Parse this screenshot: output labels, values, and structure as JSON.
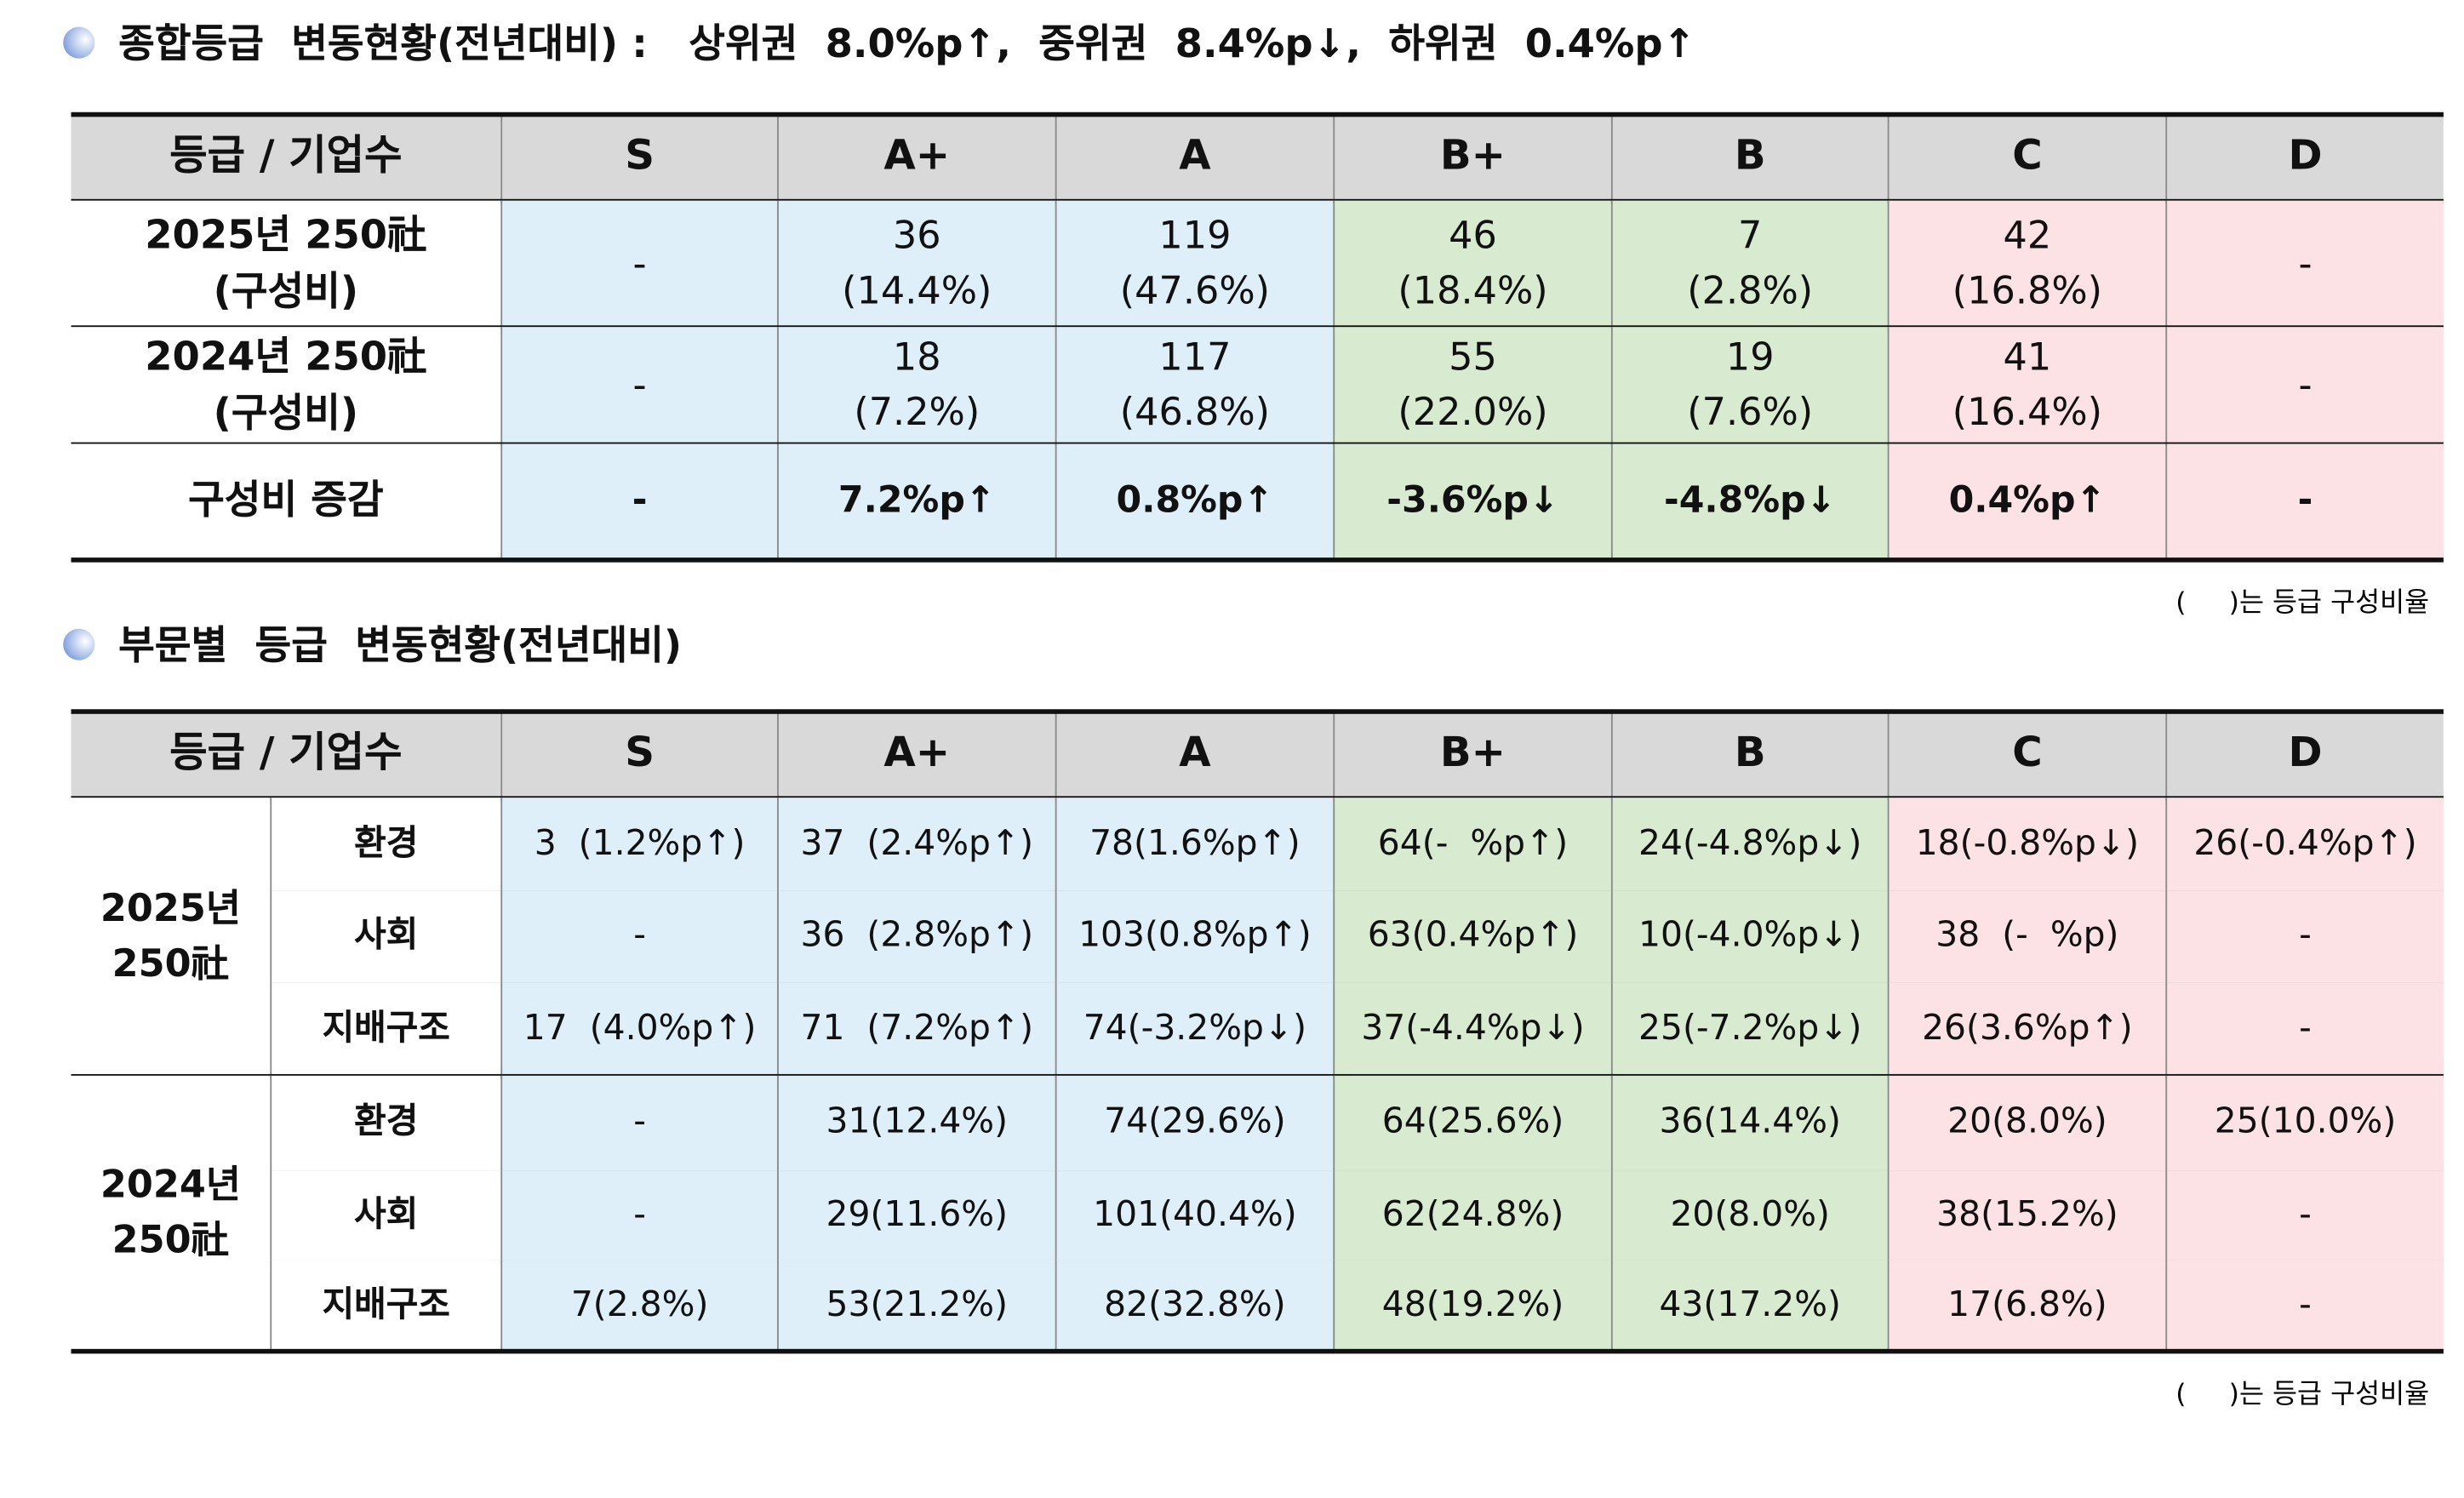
{
  "section1": {
    "title": "종합등급  변동현황(전년대비) :   상위권  8.0%p↑,  중위권  8.4%p↓,  하위권  0.4%p↑",
    "table": {
      "header": [
        "등급 / 기업수",
        "S",
        "A+",
        "A",
        "B+",
        "B",
        "C",
        "D"
      ],
      "rows": [
        {
          "label": [
            "2025년 250社",
            "(구성비)"
          ],
          "cells": [
            [
              "-"
            ],
            [
              "36",
              "(14.4%)"
            ],
            [
              "119",
              "(47.6%)"
            ],
            [
              "46",
              "(18.4%)"
            ],
            [
              "7",
              "(2.8%)"
            ],
            [
              "42",
              "(16.8%)"
            ],
            [
              "-"
            ]
          ]
        },
        {
          "label": [
            "2024년 250社",
            "(구성비)"
          ],
          "cells": [
            [
              "-"
            ],
            [
              "18",
              "(7.2%)"
            ],
            [
              "117",
              "(46.8%)"
            ],
            [
              "55",
              "(22.0%)"
            ],
            [
              "19",
              "(7.6%)"
            ],
            [
              "41",
              "(16.4%)"
            ],
            [
              "-"
            ]
          ]
        },
        {
          "label": [
            "구성비 증감"
          ],
          "cells": [
            [
              "-"
            ],
            [
              "7.2%p↑"
            ],
            [
              "0.8%p↑"
            ],
            [
              "-3.6%p↓"
            ],
            [
              "-4.8%p↓"
            ],
            [
              "0.4%p↑"
            ],
            [
              "-"
            ]
          ]
        }
      ]
    },
    "note": "(     )는 등급 구성비율"
  },
  "section2": {
    "title": "부문별  등급  변동현황(전년대비)",
    "table": {
      "header": [
        "등급 / 기업수",
        "S",
        "A+",
        "A",
        "B+",
        "B",
        "C",
        "D"
      ],
      "groups": [
        {
          "label": [
            "2025년",
            "250社"
          ],
          "rows": [
            {
              "label": "환경",
              "cells": [
                "3  (1.2%p↑)",
                "37  (2.4%p↑)",
                "78(1.6%p↑)",
                "64(-  %p↑)",
                "24(-4.8%p↓)",
                "18(-0.8%p↓)",
                "26(-0.4%p↑)"
              ]
            },
            {
              "label": "사회",
              "cells": [
                "-",
                "36  (2.8%p↑)",
                "103(0.8%p↑)",
                "63(0.4%p↑)",
                "10(-4.0%p↓)",
                "38  (-  %p)",
                "-"
              ]
            },
            {
              "label": "지배구조",
              "cells": [
                "17  (4.0%p↑)",
                "71  (7.2%p↑)",
                "74(-3.2%p↓)",
                "37(-4.4%p↓)",
                "25(-7.2%p↓)",
                "26(3.6%p↑)",
                "-"
              ]
            }
          ]
        },
        {
          "label": [
            "2024년",
            "250社"
          ],
          "rows": [
            {
              "label": "환경",
              "cells": [
                "-",
                "31(12.4%)",
                "74(29.6%)",
                "64(25.6%)",
                "36(14.4%)",
                "20(8.0%)",
                "25(10.0%)"
              ]
            },
            {
              "label": "사회",
              "cells": [
                "-",
                "29(11.6%)",
                "101(40.4%)",
                "62(24.8%)",
                "20(8.0%)",
                "38(15.2%)",
                "-"
              ]
            },
            {
              "label": "지배구조",
              "cells": [
                "7(2.8%)",
                "53(21.2%)",
                "82(32.8%)",
                "48(19.2%)",
                "43(17.2%)",
                "17(6.8%)",
                "-"
              ]
            }
          ]
        }
      ]
    },
    "note": "(     )는 등급 구성비율"
  }
}
